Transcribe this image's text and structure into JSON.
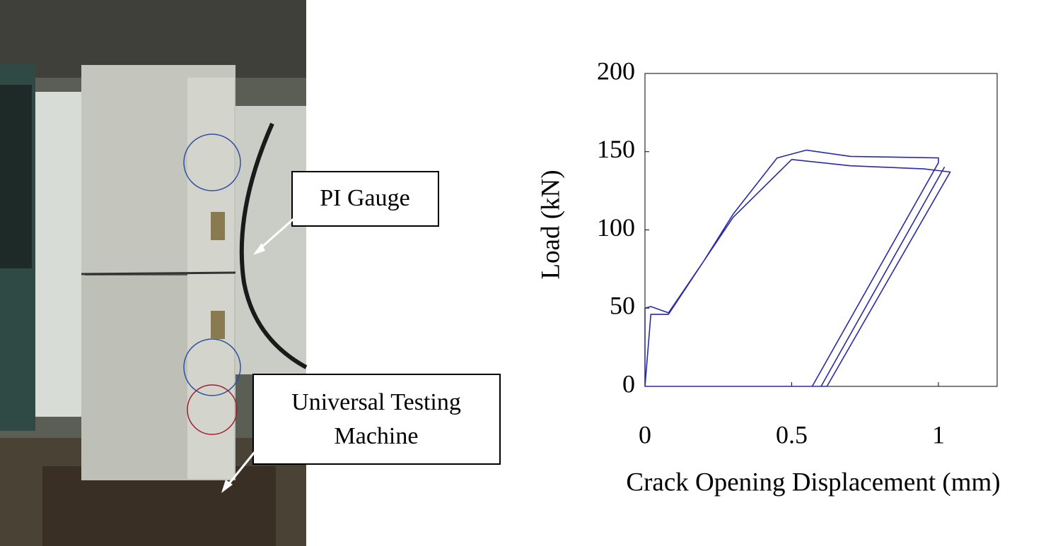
{
  "chart_data": {
    "type": "line",
    "x_label": "Crack Opening Displacement (mm)",
    "y_label": "Load (kN)",
    "x": [
      0,
      0,
      0.02,
      0.08,
      0.2,
      0.3,
      0.45,
      0.55,
      0.7,
      1.0,
      1.0,
      0.57,
      0.6,
      1.02,
      0.6,
      0.62,
      1.04,
      0.95,
      0.7,
      0.5,
      0.3,
      0.2,
      0.08,
      0.02,
      0,
      0.57
    ],
    "series": [
      {
        "color": "#2a2aa8",
        "values": [
          0,
          50,
          51,
          47,
          80,
          110,
          146,
          151,
          147,
          146,
          143,
          0,
          0,
          140,
          0,
          0,
          137,
          139,
          141,
          145,
          108,
          80,
          46,
          46,
          0,
          0
        ]
      }
    ],
    "xlim": [
      0,
      1.2
    ],
    "ylim": [
      0,
      200
    ],
    "xticks": [
      0,
      0.5,
      1
    ],
    "yticks": [
      0,
      50,
      100,
      150,
      200
    ],
    "grid": false
  },
  "photo": {
    "labels": [
      [
        "PI Gauge"
      ],
      [
        "Universal Testing",
        "Machine"
      ]
    ]
  }
}
